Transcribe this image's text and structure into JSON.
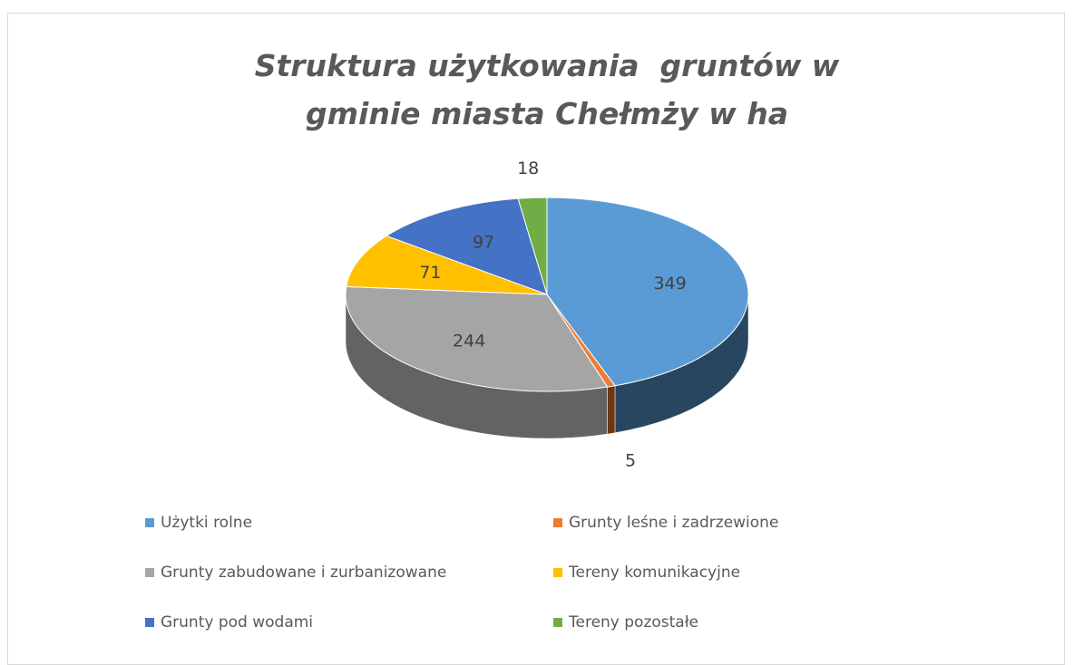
{
  "chart_data": {
    "type": "pie3d",
    "title": "Struktura użytkowania  gruntów w gminie miasta Chełmży w ha",
    "categories": [
      "Użytki rolne",
      "Grunty leśne i zadrzewione",
      "Grunty zabudowane i zurbanizowane",
      "Tereny komunikacyjne",
      "Grunty pod wodami",
      "Tereny pozostałe"
    ],
    "values": [
      349,
      5,
      244,
      71,
      97,
      18
    ],
    "colors": [
      "#5b9bd5",
      "#ed7d31",
      "#a5a5a5",
      "#ffc000",
      "#4472c4",
      "#70ad47"
    ],
    "legend": "bottom"
  }
}
